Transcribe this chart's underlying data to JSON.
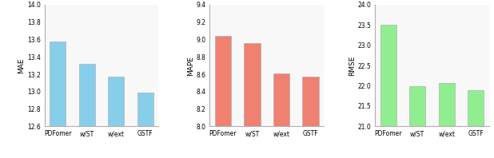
{
  "categories": [
    "PDFomer",
    "w/ST",
    "w/ext",
    "GSTF"
  ],
  "mae_values": [
    13.575,
    13.32,
    13.175,
    12.985
  ],
  "mape_values": [
    9.04,
    8.96,
    8.61,
    8.575
  ],
  "rmse_values": [
    23.5,
    22.0,
    22.07,
    21.9
  ],
  "mae_ylim": [
    12.6,
    14.0
  ],
  "mape_ylim": [
    8.0,
    9.4
  ],
  "rmse_ylim": [
    21.0,
    24.0
  ],
  "mae_yticks": [
    12.6,
    12.8,
    13.0,
    13.2,
    13.4,
    13.6,
    13.8,
    14.0
  ],
  "mape_yticks": [
    8.0,
    8.2,
    8.4,
    8.6,
    8.8,
    9.0,
    9.2,
    9.4
  ],
  "rmse_yticks": [
    21.0,
    21.5,
    22.0,
    22.5,
    23.0,
    23.5,
    24.0
  ],
  "bar_color_mae": "#87CEEB",
  "bar_color_mape": "#F08070",
  "bar_color_rmse": "#90EE90",
  "bar_edge_color": "#b0b0b0",
  "ylabel_mae": "MAE",
  "ylabel_mape": "MAPE",
  "ylabel_rmse": "RMSE",
  "tick_fontsize": 5.5,
  "label_fontsize": 6.5,
  "bar_width": 0.55
}
